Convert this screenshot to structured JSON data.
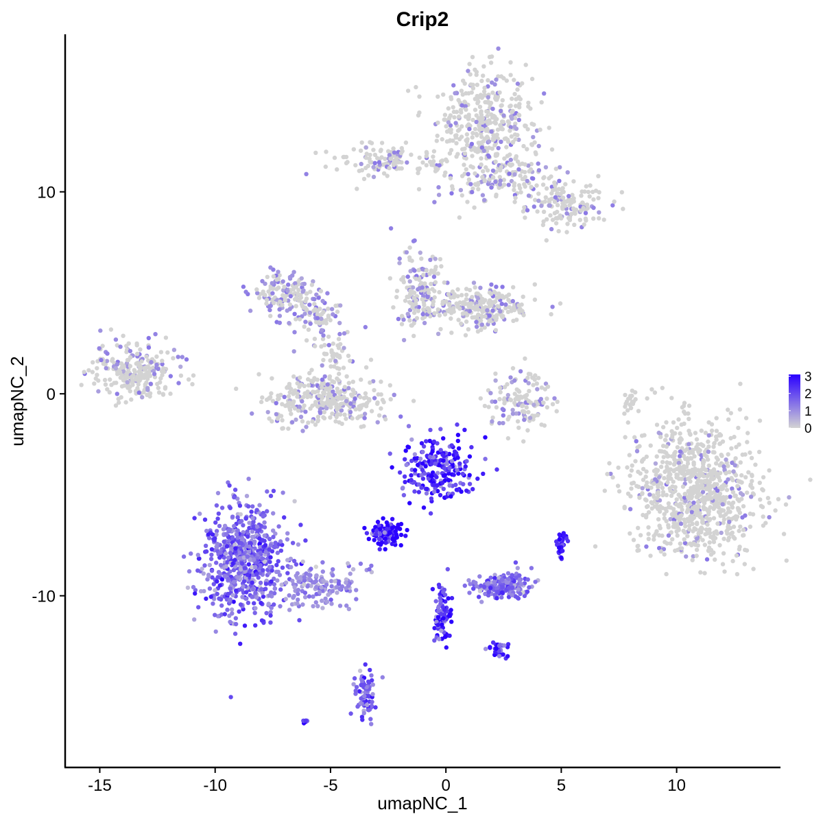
{
  "chart_data": {
    "type": "scatter",
    "title": "Crip2",
    "xlabel": "umapNC_1",
    "ylabel": "umapNC_2",
    "xlim": [
      -16.5,
      14.5
    ],
    "ylim": [
      -18.5,
      17.8
    ],
    "x_ticks": [
      -15,
      -10,
      -5,
      0,
      5,
      10
    ],
    "x_tick_labels": [
      "-15",
      "-10",
      "-5",
      "0",
      "5",
      "10"
    ],
    "y_ticks": [
      -10,
      0,
      10
    ],
    "y_tick_labels": [
      "-10",
      "0",
      "10"
    ],
    "grid": false,
    "legend": {
      "placement": "right",
      "type": "colorbar",
      "ticks": [
        0,
        1,
        2,
        3
      ],
      "tick_labels": [
        "0",
        "1",
        "2",
        "3"
      ],
      "range": [
        0,
        3.1
      ],
      "low_color": "#d3d3d3",
      "high_color": "#2a00ff"
    },
    "clusters": [
      {
        "cx": 1.7,
        "cy": 13.5,
        "sx": 1.0,
        "sy": 1.2,
        "n": 380,
        "expr": 0.1
      },
      {
        "cx": -2.5,
        "cy": 11.5,
        "sx": 1.2,
        "sy": 0.4,
        "n": 120,
        "expr": 0.15
      },
      {
        "cx": 2.5,
        "cy": 10.7,
        "sx": 1.4,
        "sy": 0.7,
        "n": 160,
        "expr": 0.2
      },
      {
        "cx": 5.3,
        "cy": 9.4,
        "sx": 0.8,
        "sy": 0.6,
        "n": 130,
        "expr": 0.1
      },
      {
        "cx": -13.5,
        "cy": 1.2,
        "sx": 0.9,
        "sy": 0.7,
        "n": 260,
        "expr": 0.15
      },
      {
        "cx": -7.0,
        "cy": 5.0,
        "sx": 0.8,
        "sy": 0.5,
        "n": 140,
        "expr": 0.3
      },
      {
        "cx": -5.8,
        "cy": 3.8,
        "sx": 0.7,
        "sy": 0.5,
        "n": 80,
        "expr": 0.25
      },
      {
        "cx": -5.2,
        "cy": -0.3,
        "sx": 1.4,
        "sy": 0.6,
        "n": 320,
        "expr": 0.15
      },
      {
        "cx": -4.8,
        "cy": 1.5,
        "sx": 0.4,
        "sy": 0.8,
        "n": 60,
        "expr": 0.1
      },
      {
        "cx": -1.2,
        "cy": 5.0,
        "sx": 0.5,
        "sy": 1.0,
        "n": 150,
        "expr": 0.25
      },
      {
        "cx": 1.4,
        "cy": 4.3,
        "sx": 1.3,
        "sy": 0.5,
        "n": 260,
        "expr": 0.12
      },
      {
        "cx": 3.2,
        "cy": -0.3,
        "sx": 0.8,
        "sy": 0.7,
        "n": 130,
        "expr": 0.15
      },
      {
        "cx": 10.8,
        "cy": -4.8,
        "sx": 1.4,
        "sy": 1.6,
        "n": 900,
        "expr": 0.08
      },
      {
        "cx": -8.8,
        "cy": -8.3,
        "sx": 0.9,
        "sy": 1.4,
        "n": 650,
        "expr": 1.6
      },
      {
        "cx": -5.5,
        "cy": -9.5,
        "sx": 0.9,
        "sy": 0.5,
        "n": 150,
        "expr": 1.0
      },
      {
        "cx": -0.3,
        "cy": -3.8,
        "sx": 0.8,
        "sy": 0.8,
        "n": 230,
        "expr": 2.5
      },
      {
        "cx": -2.6,
        "cy": -6.9,
        "sx": 0.35,
        "sy": 0.3,
        "n": 120,
        "expr": 2.9
      },
      {
        "cx": 2.5,
        "cy": -9.5,
        "sx": 0.6,
        "sy": 0.3,
        "n": 180,
        "expr": 1.5
      },
      {
        "cx": -0.2,
        "cy": -11.0,
        "sx": 0.2,
        "sy": 0.7,
        "n": 90,
        "expr": 2.3
      },
      {
        "cx": -3.5,
        "cy": -14.8,
        "sx": 0.2,
        "sy": 0.6,
        "n": 80,
        "expr": 1.7
      },
      {
        "cx": 5.0,
        "cy": -7.5,
        "sx": 0.12,
        "sy": 0.3,
        "n": 35,
        "expr": 2.6
      },
      {
        "cx": 2.3,
        "cy": -12.7,
        "sx": 0.25,
        "sy": 0.2,
        "n": 35,
        "expr": 2.4
      },
      {
        "cx": -6.1,
        "cy": -16.2,
        "sx": 0.07,
        "sy": 0.05,
        "n": 8,
        "expr": 3.0
      },
      {
        "cx": 8.0,
        "cy": -0.3,
        "sx": 0.15,
        "sy": 0.4,
        "n": 20,
        "expr": 0.0
      }
    ]
  }
}
